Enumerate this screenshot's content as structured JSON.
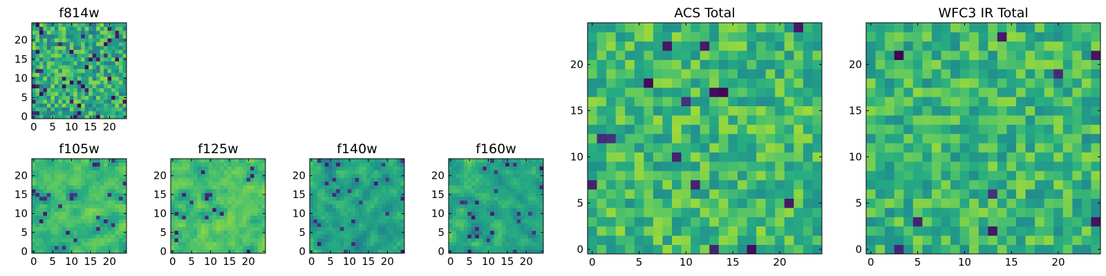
{
  "chart_data": [
    {
      "id": "f814w",
      "type": "heatmap",
      "title": "f814w",
      "rows": 25,
      "cols": 25,
      "xticks": [
        "0",
        "5",
        "10",
        "15",
        "20"
      ],
      "yticks": [
        "0",
        "5",
        "10",
        "15",
        "20"
      ],
      "xlim": [
        -0.5,
        24.5
      ],
      "ylim": [
        -0.5,
        24.5
      ],
      "origin": "lower",
      "colormap": "viridis",
      "seed": 11,
      "mean": 0.62,
      "spread": 0.22,
      "smooth": 0,
      "dark_fraction": 0.06
    },
    {
      "id": "f105w",
      "type": "heatmap",
      "title": "f105w",
      "rows": 25,
      "cols": 25,
      "xticks": [
        "0",
        "5",
        "10",
        "15",
        "20"
      ],
      "yticks": [
        "0",
        "5",
        "10",
        "15",
        "20"
      ],
      "xlim": [
        -0.5,
        24.5
      ],
      "ylim": [
        -0.5,
        24.5
      ],
      "origin": "lower",
      "colormap": "viridis",
      "seed": 23,
      "mean": 0.7,
      "spread": 0.2,
      "smooth": 1,
      "dark_fraction": 0.03
    },
    {
      "id": "f125w",
      "type": "heatmap",
      "title": "f125w",
      "rows": 25,
      "cols": 25,
      "xticks": [
        "0",
        "5",
        "10",
        "15",
        "20"
      ],
      "yticks": [
        "0",
        "5",
        "10",
        "15",
        "20"
      ],
      "xlim": [
        -0.5,
        24.5
      ],
      "ylim": [
        -0.5,
        24.5
      ],
      "origin": "lower",
      "colormap": "viridis",
      "seed": 37,
      "mean": 0.72,
      "spread": 0.2,
      "smooth": 1,
      "dark_fraction": 0.03
    },
    {
      "id": "f140w",
      "type": "heatmap",
      "title": "f140w",
      "rows": 25,
      "cols": 25,
      "xticks": [
        "0",
        "5",
        "10",
        "15",
        "20"
      ],
      "yticks": [
        "0",
        "5",
        "10",
        "15",
        "20"
      ],
      "xlim": [
        -0.5,
        24.5
      ],
      "ylim": [
        -0.5,
        24.5
      ],
      "origin": "lower",
      "colormap": "viridis",
      "seed": 41,
      "mean": 0.6,
      "spread": 0.25,
      "smooth": 1,
      "dark_fraction": 0.05
    },
    {
      "id": "f160w",
      "type": "heatmap",
      "title": "f160w",
      "rows": 25,
      "cols": 25,
      "xticks": [
        "0",
        "5",
        "10",
        "15",
        "20"
      ],
      "yticks": [
        "0",
        "5",
        "10",
        "15",
        "20"
      ],
      "xlim": [
        -0.5,
        24.5
      ],
      "ylim": [
        -0.5,
        24.5
      ],
      "origin": "lower",
      "colormap": "viridis",
      "seed": 53,
      "mean": 0.62,
      "spread": 0.24,
      "smooth": 1,
      "dark_fraction": 0.05
    },
    {
      "id": "acs_total",
      "type": "heatmap",
      "title": "ACS Total",
      "rows": 25,
      "cols": 25,
      "xticks": [
        "0",
        "5",
        "10",
        "15",
        "20"
      ],
      "yticks": [
        "0",
        "5",
        "10",
        "15",
        "20"
      ],
      "xlim": [
        -0.5,
        24.5
      ],
      "ylim": [
        -0.5,
        24.5
      ],
      "origin": "lower",
      "colormap": "viridis",
      "seed": 67,
      "mean": 0.68,
      "spread": 0.18,
      "smooth": 0,
      "dark_fraction": 0.02
    },
    {
      "id": "wfc3_ir_total",
      "type": "heatmap",
      "title": "WFC3 IR Total",
      "rows": 25,
      "cols": 25,
      "xticks": [
        "0",
        "5",
        "10",
        "15",
        "20"
      ],
      "yticks": [
        "0",
        "5",
        "10",
        "15",
        "20"
      ],
      "xlim": [
        -0.5,
        24.5
      ],
      "ylim": [
        -0.5,
        24.5
      ],
      "origin": "lower",
      "colormap": "viridis",
      "seed": 79,
      "mean": 0.66,
      "spread": 0.18,
      "smooth": 0,
      "dark_fraction": 0.02
    }
  ]
}
